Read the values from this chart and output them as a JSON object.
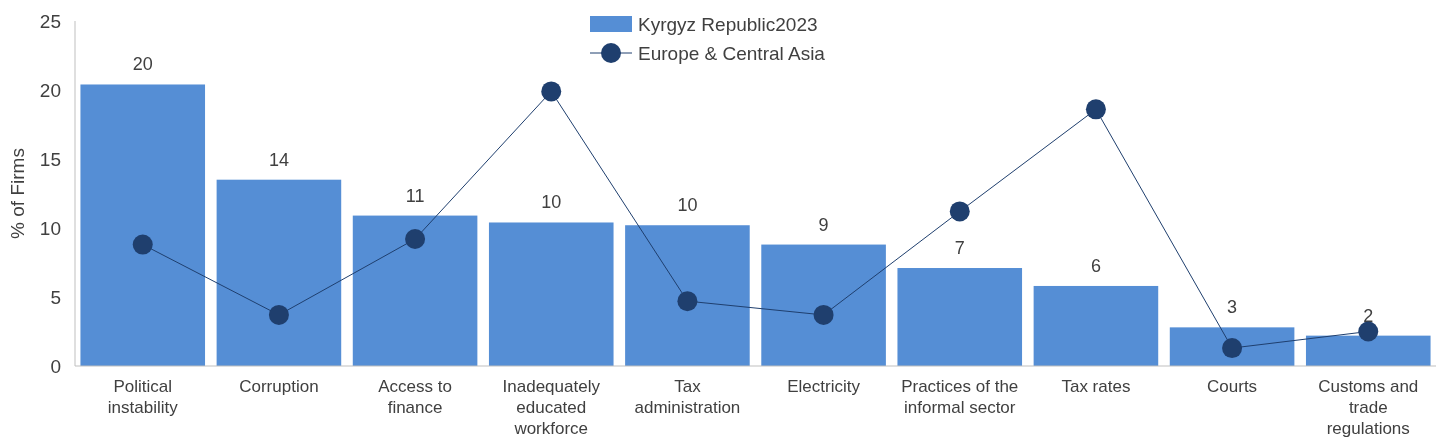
{
  "chart_data": {
    "type": "bar",
    "ylabel": "% of Firms",
    "categories": [
      "Political instability",
      "Corruption",
      "Access to finance",
      "Inadequately educated workforce",
      "Tax administration",
      "Electricity",
      "Practices of the informal sector",
      "Tax rates",
      "Courts",
      "Customs and trade regulations"
    ],
    "series": [
      {
        "name": "Kyrgyz Republic2023",
        "color": "#558ed5",
        "values": [
          20.4,
          13.5,
          10.9,
          10.4,
          10.2,
          8.8,
          7.1,
          5.8,
          2.8,
          2.2
        ],
        "value_labels": [
          "20",
          "14",
          "11",
          "10",
          "10",
          "9",
          "7",
          "6",
          "3",
          "2"
        ]
      },
      {
        "name": "Europe & Central Asia",
        "type": "line",
        "color": "#1f3f6e",
        "marker": "circle",
        "values": [
          8.8,
          3.7,
          9.2,
          19.9,
          4.7,
          3.7,
          11.2,
          18.6,
          1.3,
          2.5
        ]
      }
    ],
    "ylim": [
      0,
      25
    ],
    "yticks": [
      0,
      5,
      10,
      15,
      20,
      25
    ],
    "legend": "top",
    "grid": false
  }
}
